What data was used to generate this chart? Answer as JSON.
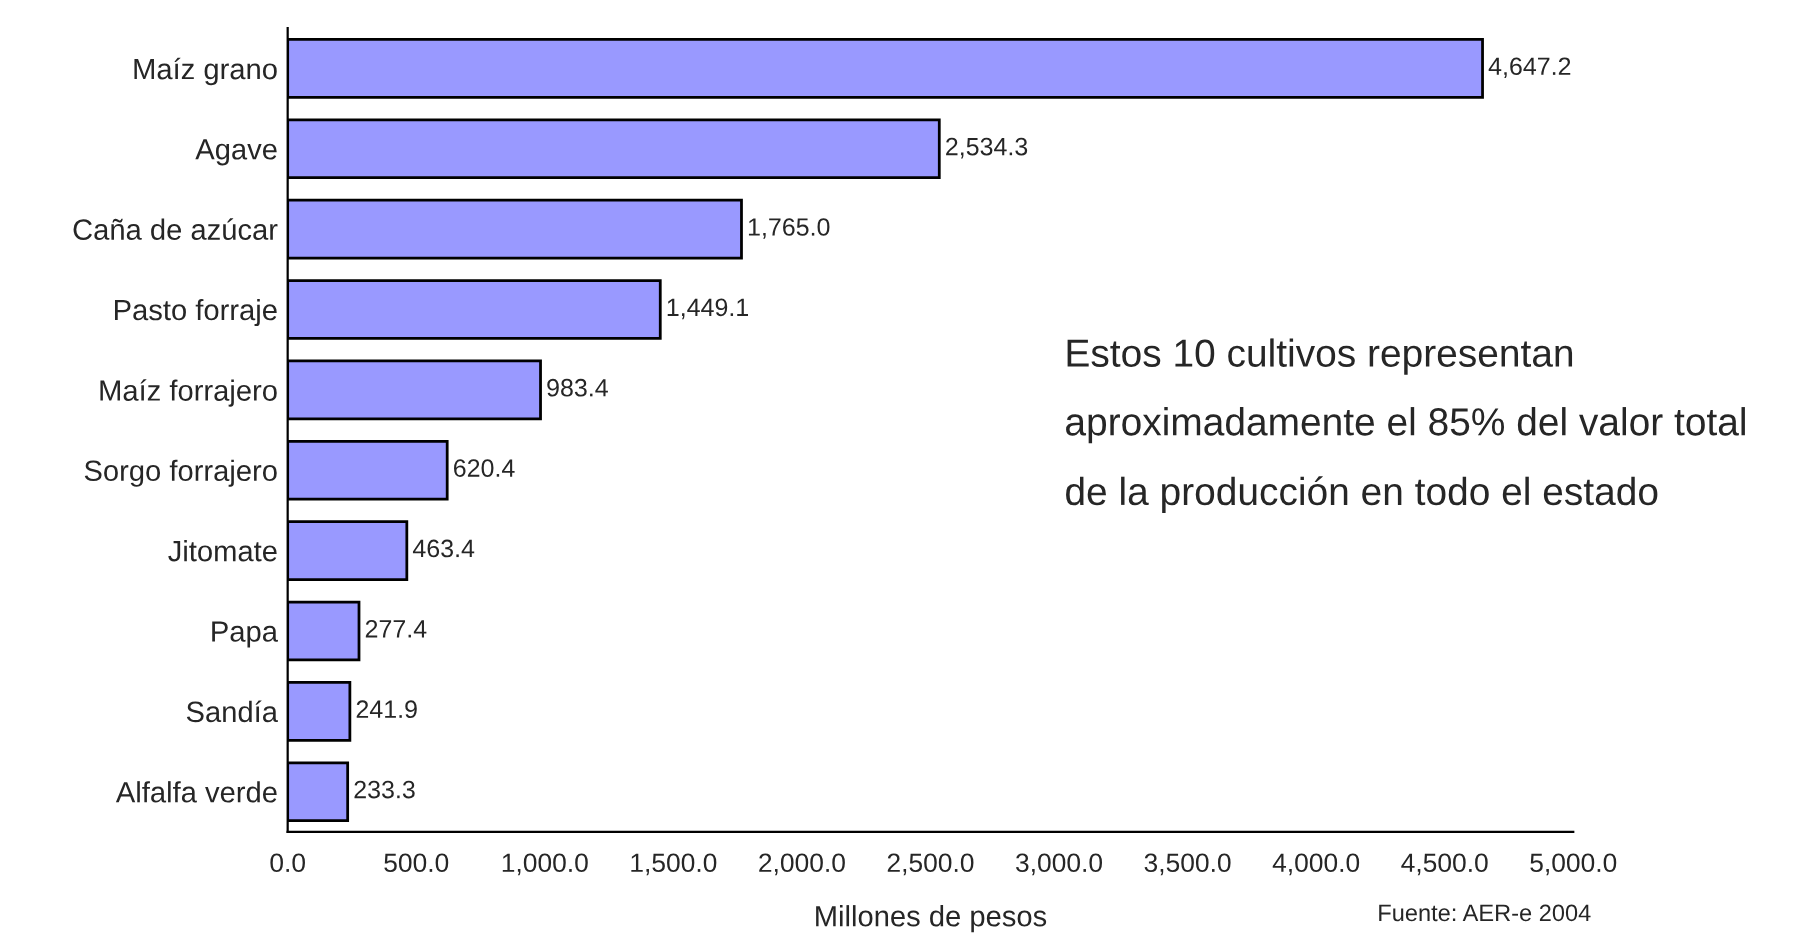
{
  "chart_data": {
    "type": "bar",
    "orientation": "horizontal",
    "xlabel": "Millones de pesos",
    "categories": [
      "Maíz grano",
      "Agave",
      "Caña de azúcar",
      "Pasto forraje",
      "Maíz forrajero",
      "Sorgo forrajero",
      "Jitomate",
      "Papa",
      "Sandía",
      "Alfalfa verde"
    ],
    "values": [
      4647.2,
      2534.3,
      1765.0,
      1449.1,
      983.4,
      620.4,
      463.4,
      277.4,
      241.9,
      233.3
    ],
    "value_labels": [
      "4,647.2",
      "2,534.3",
      "1,765.0",
      "1,449.1",
      "983.4",
      "620.4",
      "463.4",
      "277.4",
      "241.9",
      "233.3"
    ],
    "color": "#9999ff",
    "xlim": [
      0,
      5000
    ],
    "xticks": [
      {
        "value": 0,
        "label": "0.0"
      },
      {
        "value": 500,
        "label": "500.0"
      },
      {
        "value": 1000,
        "label": "1,000.0"
      },
      {
        "value": 1500,
        "label": "1,500.0"
      },
      {
        "value": 2000,
        "label": "2,000.0"
      },
      {
        "value": 2500,
        "label": "2,500.0"
      },
      {
        "value": 3000,
        "label": "3,000.0"
      },
      {
        "value": 3500,
        "label": "3,500.0"
      },
      {
        "value": 4000,
        "label": "4,000.0"
      },
      {
        "value": 4500,
        "label": "4,500.0"
      },
      {
        "value": 5000,
        "label": "5,000.0"
      }
    ],
    "grid": false,
    "legend": false,
    "annotations": [
      "Estos 10 cultivos representan aproximadamente el 85% del valor total de la producción en todo el estado",
      "Fuente: AER-e 2004"
    ]
  }
}
